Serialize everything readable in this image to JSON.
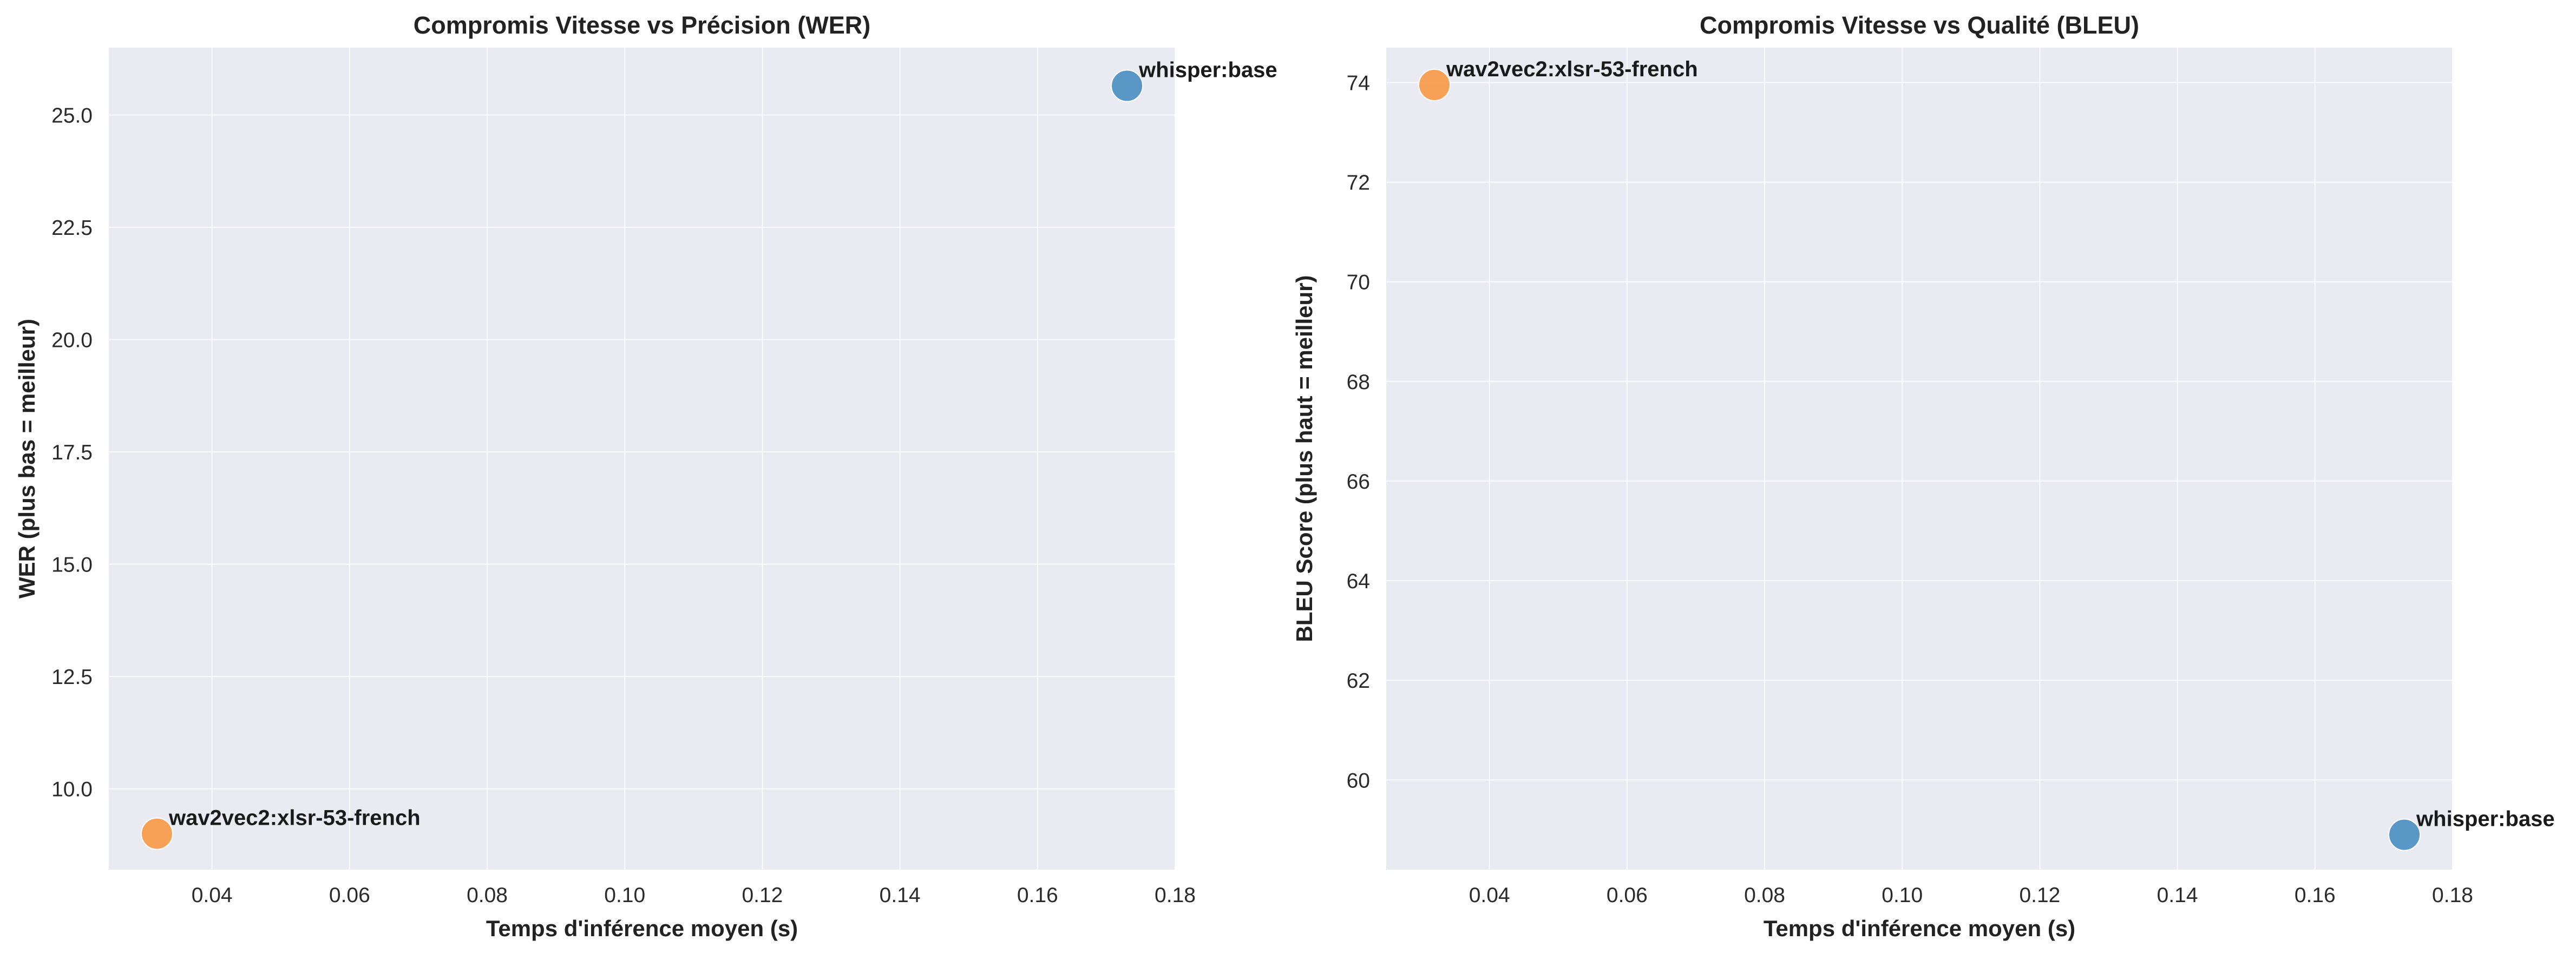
{
  "chart_data": [
    {
      "type": "scatter",
      "title": "Compromis Vitesse vs Précision (WER)",
      "xlabel": "Temps d'inférence moyen (s)",
      "ylabel": "WER (plus bas = meilleur)",
      "xlim": [
        0.025,
        0.18
      ],
      "ylim": [
        8.2,
        26.5
      ],
      "xticks": [
        0.04,
        0.06,
        0.08,
        0.1,
        0.12,
        0.14,
        0.16,
        0.18
      ],
      "xtick_labels": [
        "0.04",
        "0.06",
        "0.08",
        "0.10",
        "0.12",
        "0.14",
        "0.16",
        "0.18"
      ],
      "yticks": [
        10.0,
        12.5,
        15.0,
        17.5,
        20.0,
        22.5,
        25.0
      ],
      "ytick_labels": [
        "10.0",
        "12.5",
        "15.0",
        "17.5",
        "20.0",
        "22.5",
        "25.0"
      ],
      "grid": true,
      "points": [
        {
          "label": "whisper:base",
          "x": 0.173,
          "y": 25.65,
          "color": "#4c8fc2"
        },
        {
          "label": "wav2vec2:xlsr-53-french",
          "x": 0.032,
          "y": 9.0,
          "color": "#f79a4a"
        }
      ]
    },
    {
      "type": "scatter",
      "title": "Compromis Vitesse vs Qualité (BLEU)",
      "xlabel": "Temps d'inférence moyen (s)",
      "ylabel": "BLEU Score (plus haut = meilleur)",
      "xlim": [
        0.025,
        0.18
      ],
      "ylim": [
        58.2,
        74.7
      ],
      "xticks": [
        0.04,
        0.06,
        0.08,
        0.1,
        0.12,
        0.14,
        0.16,
        0.18
      ],
      "xtick_labels": [
        "0.04",
        "0.06",
        "0.08",
        "0.10",
        "0.12",
        "0.14",
        "0.16",
        "0.18"
      ],
      "yticks": [
        60,
        62,
        64,
        66,
        68,
        70,
        72,
        74
      ],
      "ytick_labels": [
        "60",
        "62",
        "64",
        "66",
        "68",
        "70",
        "72",
        "74"
      ],
      "grid": true,
      "points": [
        {
          "label": "wav2vec2:xlsr-53-french",
          "x": 0.032,
          "y": 73.95,
          "color": "#f79a4a"
        },
        {
          "label": "whisper:base",
          "x": 0.173,
          "y": 58.9,
          "color": "#4c8fc2"
        }
      ]
    }
  ],
  "colors": {
    "plot_background": "#eaeaf2",
    "figure_background": "#ffffff"
  }
}
